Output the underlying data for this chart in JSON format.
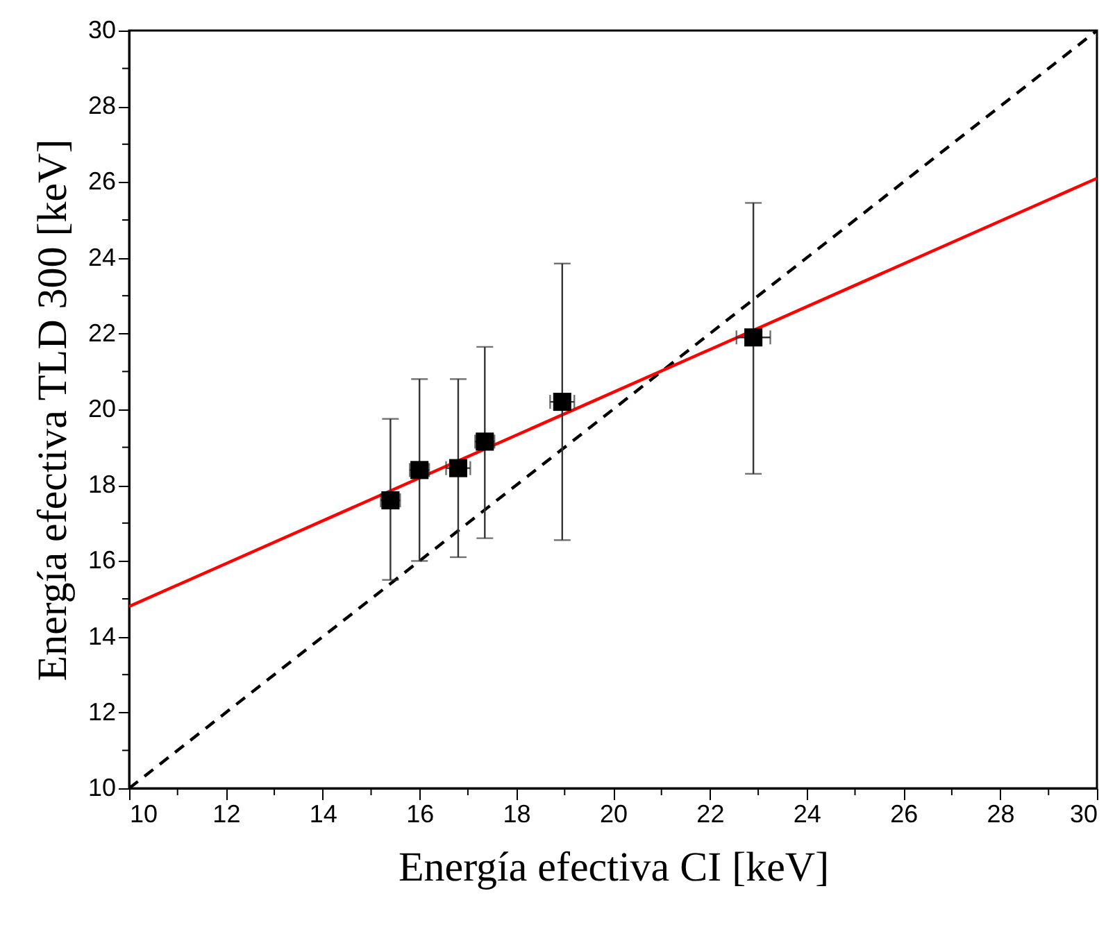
{
  "chart_data": {
    "type": "scatter",
    "xlabel": "Energía efectiva CI [keV]",
    "ylabel": "Energía efectiva TLD 300 [keV]",
    "xlim": [
      10,
      30
    ],
    "ylim": [
      10,
      30
    ],
    "xticks": [
      10,
      {
        "value": 11,
        "label": null
      },
      12,
      {
        "value": 13,
        "label": null
      },
      14,
      {
        "value": 15,
        "label": null
      },
      16,
      {
        "value": 17,
        "label": null
      },
      18,
      {
        "value": 19,
        "label": null
      },
      20,
      {
        "value": 21,
        "label": null
      },
      22,
      {
        "value": 23,
        "label": null
      },
      24,
      {
        "value": 25,
        "label": null
      },
      26,
      {
        "value": 27,
        "label": null
      },
      28,
      {
        "value": 29,
        "label": null
      },
      30
    ],
    "yticks": [
      10,
      {
        "value": 11,
        "label": null
      },
      12,
      {
        "value": 13,
        "label": null
      },
      14,
      {
        "value": 15,
        "label": null
      },
      16,
      {
        "value": 17,
        "label": null
      },
      18,
      {
        "value": 19,
        "label": null
      },
      20,
      {
        "value": 21,
        "label": null
      },
      22,
      {
        "value": 23,
        "label": null
      },
      24,
      {
        "value": 25,
        "label": null
      },
      26,
      {
        "value": 27,
        "label": null
      },
      28,
      {
        "value": 29,
        "label": null
      },
      30
    ],
    "grid": false,
    "marker": "square",
    "series": [
      {
        "type": "line",
        "color": "#000000",
        "line_style": "dashed",
        "marker": "none",
        "x": [
          10,
          30
        ],
        "values": [
          10,
          30
        ]
      },
      {
        "type": "line",
        "color": "#ff0000",
        "line_style": "solid",
        "marker": "none",
        "x": [
          10,
          30
        ],
        "values": [
          14.8,
          26.1
        ]
      },
      {
        "color": "#000000",
        "x": [
          15.4,
          16.0,
          16.8,
          17.35,
          18.95,
          22.9
        ],
        "values": [
          17.6,
          18.4,
          18.45,
          19.15,
          20.2,
          21.9
        ],
        "errors": [
          [
            15.5,
            19.75
          ],
          [
            16.0,
            20.8
          ],
          [
            16.1,
            20.8
          ],
          [
            16.6,
            21.65
          ],
          [
            16.55,
            23.85
          ],
          [
            18.3,
            25.45
          ]
        ],
        "xerrors": [
          0.2,
          0.2,
          0.25,
          0.2,
          0.25,
          0.35
        ]
      }
    ]
  }
}
